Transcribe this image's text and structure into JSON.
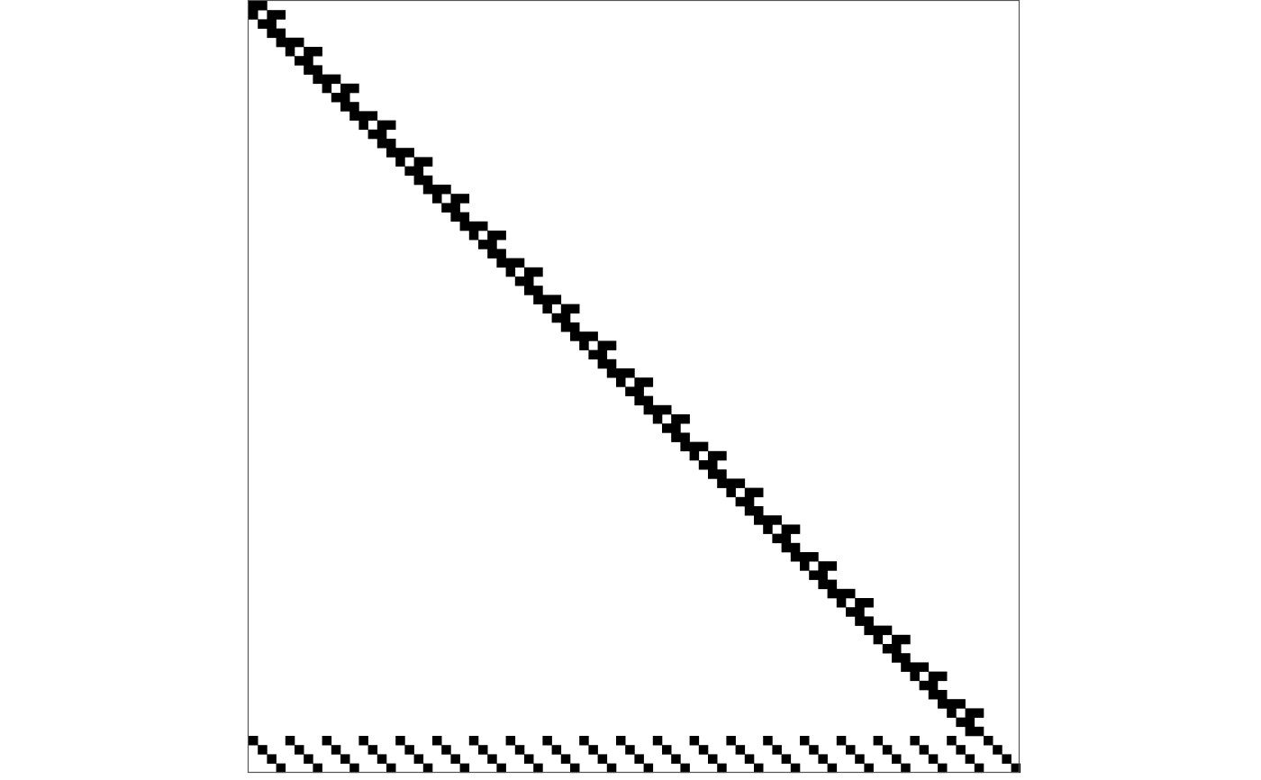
{
  "chart_data": {
    "type": "heatmap",
    "description_kind": "sparsity-pattern",
    "rows": 84,
    "cols": 84,
    "grid": false,
    "axes_shown": false,
    "title": "",
    "xlabel": "",
    "ylabel": "",
    "block_size": 4,
    "block_count": 21,
    "nonzero_color": "#000000",
    "background_color": "#ffffff",
    "frame_color": "#555555",
    "diagonal_block_pattern": [
      [
        0,
        0
      ],
      [
        0,
        1
      ],
      [
        1,
        0
      ],
      [
        1,
        2
      ],
      [
        1,
        3
      ],
      [
        2,
        1
      ],
      [
        2,
        2
      ],
      [
        3,
        2
      ],
      [
        3,
        3
      ],
      [
        4,
        3
      ],
      [
        4,
        4
      ]
    ],
    "bottom_band_rows": [
      80,
      83
    ],
    "bottom_band_pattern": [
      [
        80,
        0
      ],
      [
        81,
        1
      ],
      [
        82,
        2
      ],
      [
        83,
        3
      ]
    ]
  }
}
